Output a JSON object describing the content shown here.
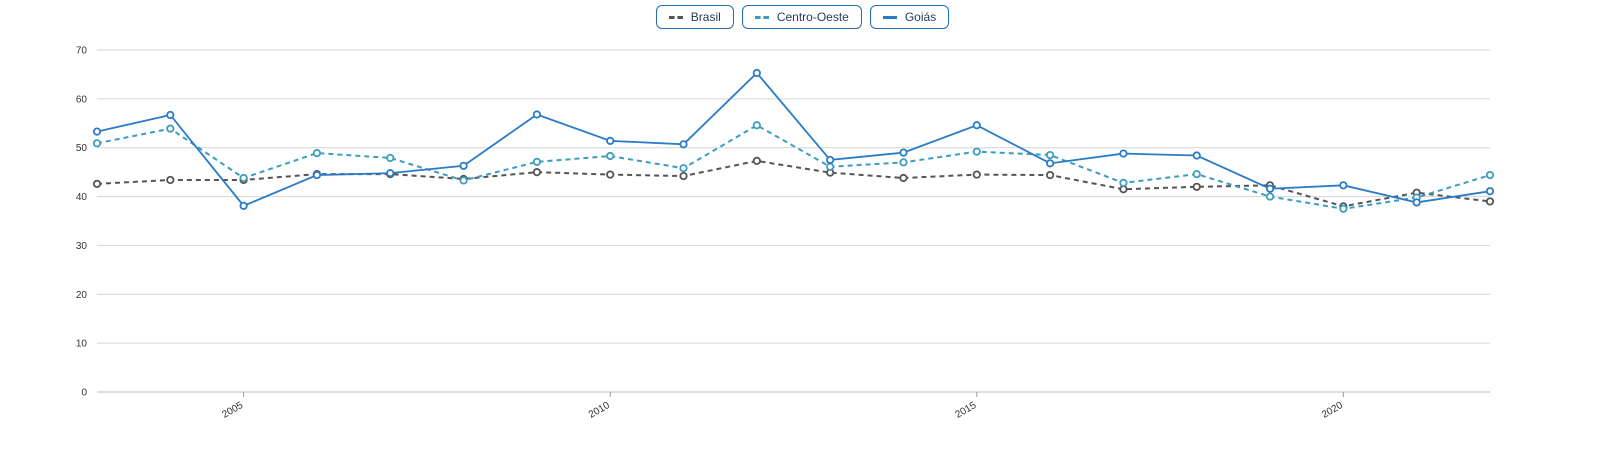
{
  "legend": [
    {
      "label": "Brasil",
      "color": "#555555",
      "style": "dashed"
    },
    {
      "label": "Centro-Oeste",
      "color": "#3b9dbf",
      "style": "dashed"
    },
    {
      "label": "Goiás",
      "color": "#2a7cc7",
      "style": "solid"
    }
  ],
  "chart_data": {
    "type": "line",
    "title": "",
    "xlabel": "",
    "ylabel": "",
    "x": [
      2003,
      2004,
      2005,
      2006,
      2007,
      2008,
      2009,
      2010,
      2011,
      2012,
      2013,
      2014,
      2015,
      2016,
      2017,
      2018,
      2019,
      2020,
      2021,
      2022
    ],
    "xticks": [
      2005,
      2010,
      2015,
      2020
    ],
    "yticks": [
      0,
      10,
      20,
      30,
      40,
      50,
      60,
      70
    ],
    "ylim": [
      0,
      70
    ],
    "xlim": [
      2003,
      2022
    ],
    "grid": true,
    "legend_position": "top-center",
    "series": [
      {
        "name": "Brasil",
        "color": "#555555",
        "style": "dashed",
        "values": [
          42.6,
          43.4,
          43.4,
          44.6,
          44.6,
          43.6,
          45.0,
          44.5,
          44.2,
          47.3,
          44.9,
          43.8,
          44.5,
          44.4,
          41.5,
          42.0,
          42.3,
          38.0,
          40.8,
          39.0
        ]
      },
      {
        "name": "Centro-Oeste",
        "color": "#3b9dbf",
        "style": "dashed",
        "values": [
          50.9,
          53.9,
          43.8,
          48.9,
          47.9,
          43.3,
          47.1,
          48.3,
          45.8,
          54.6,
          46.1,
          47.0,
          49.2,
          48.5,
          42.8,
          44.6,
          40.0,
          37.5,
          39.8,
          44.4
        ]
      },
      {
        "name": "Goiás",
        "color": "#2a7cc7",
        "style": "solid",
        "values": [
          53.3,
          56.7,
          38.1,
          44.4,
          44.8,
          46.3,
          56.8,
          51.4,
          50.7,
          65.3,
          47.5,
          49.0,
          54.6,
          46.8,
          48.8,
          48.4,
          41.6,
          42.3,
          38.8,
          41.1
        ]
      }
    ]
  }
}
